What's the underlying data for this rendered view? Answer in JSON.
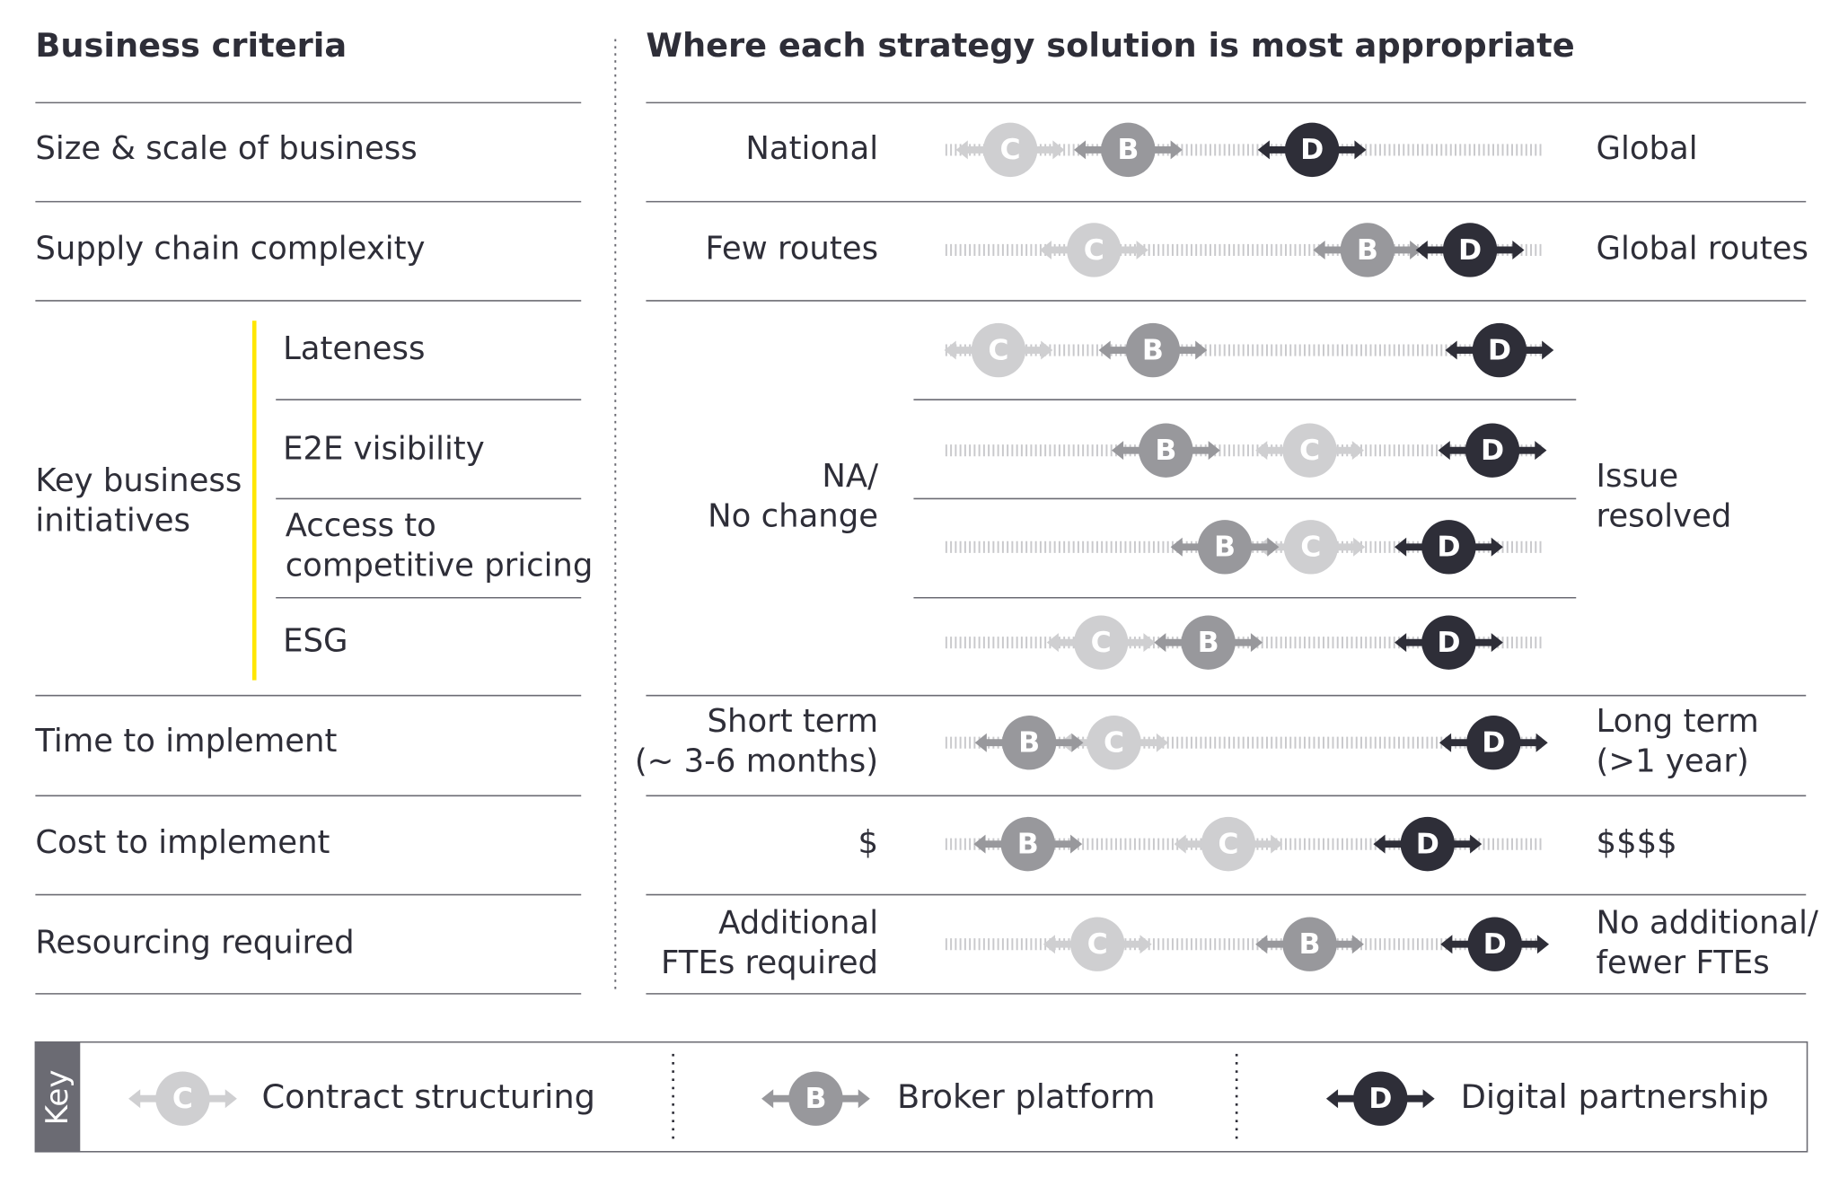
{
  "left_header": "Business criteria",
  "right_header": "Where each strategy solution is most appropriate",
  "rows": [
    {
      "criterion": [
        "Size & scale of business"
      ],
      "low": [
        "National"
      ],
      "high": [
        "Global"
      ]
    },
    {
      "criterion": [
        "Supply chain complexity"
      ],
      "low": [
        "Few routes"
      ],
      "high": [
        "Global routes"
      ]
    },
    {
      "criterion": [
        "Key business",
        "initiatives"
      ],
      "low": [
        "NA/",
        "No change"
      ],
      "high": [
        "Issue",
        "resolved"
      ],
      "subrows": [
        [
          "Lateness"
        ],
        [
          "E2E visibility"
        ],
        [
          "Access to",
          "competitive pricing"
        ],
        [
          "ESG"
        ]
      ]
    },
    {
      "criterion": [
        "Time to implement"
      ],
      "low": [
        "Short term",
        "(~ 3-6 months)"
      ],
      "high": [
        "Long term",
        "(>1 year)"
      ]
    },
    {
      "criterion": [
        "Cost to implement"
      ],
      "low": [
        "$"
      ],
      "high": [
        "$$$$"
      ]
    },
    {
      "criterion": [
        "Resourcing required"
      ],
      "low": [
        "Additional",
        "FTEs required"
      ],
      "high": [
        "No additional/",
        "fewer FTEs"
      ]
    }
  ],
  "key": {
    "title": "Key",
    "items": [
      {
        "letter": "C",
        "label": "Contract structuring"
      },
      {
        "letter": "B",
        "label": "Broker platform"
      },
      {
        "letter": "D",
        "label": "Digital partnership"
      }
    ]
  }
}
